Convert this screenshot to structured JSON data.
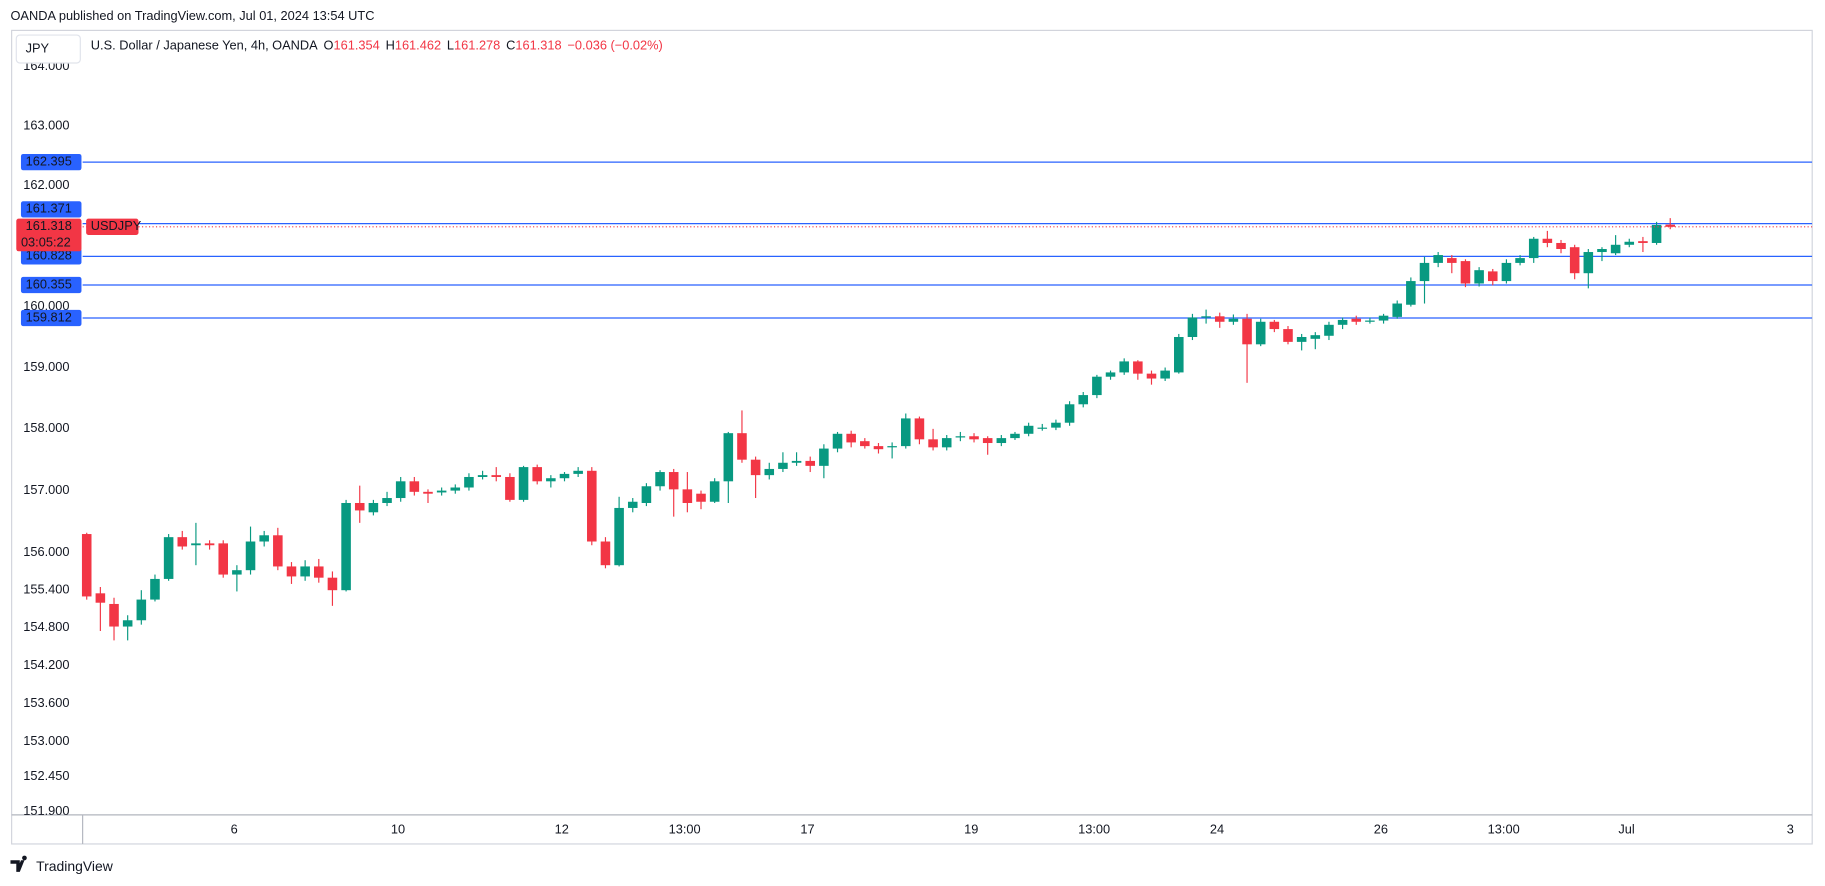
{
  "header": "OANDA published on TradingView.com, Jul 01, 2024 13:54 UTC",
  "chart_data": {
    "type": "candlestick",
    "symbol_button": "JPY",
    "legend": {
      "title": "U.S. Dollar / Japanese Yen, 4h, OANDA",
      "open_label": "O",
      "open": 161.354,
      "high_label": "H",
      "high": 161.462,
      "low_label": "L",
      "low": 161.278,
      "close_label": "C",
      "close": 161.318,
      "change": "−0.036 (−0.02%)"
    },
    "open": [
      156.3,
      155.35,
      155.18,
      154.82,
      154.92,
      155.25,
      155.58,
      156.25,
      156.12,
      156.15,
      156.15,
      155.65,
      155.72,
      156.18,
      156.28,
      155.78,
      155.62,
      155.78,
      155.6,
      155.4,
      156.8,
      156.65,
      156.8,
      156.88,
      157.15,
      156.98,
      156.97,
      157.0,
      157.05,
      157.22,
      157.25,
      157.22,
      156.85,
      157.38,
      157.15,
      157.2,
      157.27,
      157.32,
      156.18,
      155.8,
      156.72,
      156.8,
      157.07,
      157.3,
      157.02,
      156.95,
      156.82,
      157.15,
      157.93,
      157.5,
      157.25,
      157.35,
      157.45,
      157.48,
      157.4,
      157.68,
      157.92,
      157.8,
      157.72,
      157.7,
      157.72,
      158.17,
      157.83,
      157.7,
      157.86,
      157.88,
      157.85,
      157.77,
      157.85,
      157.92,
      158.02,
      158.02,
      158.1,
      158.4,
      158.55,
      158.85,
      158.92,
      159.1,
      158.9,
      158.82,
      158.92,
      159.5,
      159.82,
      159.84,
      159.75,
      159.8,
      159.38,
      159.75,
      159.63,
      159.42,
      159.47,
      159.52,
      159.7,
      159.8,
      159.75,
      159.77,
      159.83,
      160.03,
      160.42,
      160.72,
      160.8,
      160.75,
      160.38,
      160.58,
      160.42,
      160.72,
      160.8,
      161.12,
      161.05,
      160.98,
      160.55,
      160.9,
      160.88,
      161.02,
      161.08,
      161.05,
      161.354
    ],
    "high": [
      156.32,
      155.45,
      155.28,
      155.0,
      155.4,
      155.65,
      156.3,
      156.35,
      156.48,
      156.2,
      156.2,
      155.8,
      156.42,
      156.35,
      156.4,
      155.85,
      155.88,
      155.9,
      155.7,
      156.85,
      157.08,
      156.85,
      156.98,
      157.22,
      157.22,
      157.02,
      157.05,
      157.1,
      157.28,
      157.32,
      157.38,
      157.28,
      157.4,
      157.42,
      157.25,
      157.3,
      157.38,
      157.38,
      156.25,
      156.9,
      156.88,
      157.12,
      157.33,
      157.35,
      157.3,
      157.0,
      157.2,
      157.95,
      158.3,
      157.55,
      157.45,
      157.62,
      157.62,
      157.55,
      157.75,
      157.95,
      157.97,
      157.85,
      157.77,
      157.78,
      158.25,
      158.2,
      158.0,
      157.9,
      157.95,
      157.93,
      157.88,
      157.9,
      157.95,
      158.1,
      158.08,
      158.15,
      158.45,
      158.6,
      158.88,
      158.95,
      159.15,
      159.12,
      158.95,
      159.0,
      159.55,
      159.88,
      159.95,
      159.9,
      159.87,
      159.88,
      159.8,
      159.78,
      159.68,
      159.55,
      159.58,
      159.75,
      159.82,
      159.85,
      159.82,
      159.88,
      160.1,
      160.48,
      160.82,
      160.9,
      160.85,
      160.78,
      160.65,
      160.62,
      160.78,
      160.85,
      161.15,
      161.25,
      161.1,
      161.02,
      160.95,
      160.98,
      161.18,
      161.12,
      161.15,
      161.4,
      161.462
    ],
    "low": [
      155.25,
      154.75,
      154.6,
      154.6,
      154.85,
      155.22,
      155.55,
      156.05,
      155.8,
      156.05,
      155.6,
      155.38,
      155.65,
      156.1,
      155.72,
      155.5,
      155.55,
      155.52,
      155.15,
      155.38,
      156.48,
      156.6,
      156.75,
      156.82,
      156.92,
      156.8,
      156.92,
      156.95,
      157.0,
      157.18,
      157.15,
      156.82,
      156.82,
      157.1,
      157.05,
      157.15,
      157.22,
      156.12,
      155.75,
      155.78,
      156.65,
      156.75,
      157.0,
      156.58,
      156.65,
      156.7,
      156.8,
      156.8,
      157.45,
      156.88,
      157.18,
      157.3,
      157.4,
      157.3,
      157.2,
      157.62,
      157.7,
      157.68,
      157.6,
      157.52,
      157.68,
      157.75,
      157.65,
      157.65,
      157.8,
      157.78,
      157.58,
      157.72,
      157.82,
      157.88,
      157.97,
      157.98,
      158.05,
      158.35,
      158.5,
      158.8,
      158.88,
      158.8,
      158.72,
      158.78,
      158.9,
      159.45,
      159.72,
      159.65,
      159.7,
      158.75,
      159.35,
      159.58,
      159.38,
      159.28,
      159.3,
      159.45,
      159.63,
      159.7,
      159.72,
      159.72,
      159.8,
      160.0,
      160.05,
      160.65,
      160.55,
      160.32,
      160.33,
      160.35,
      160.38,
      160.68,
      160.72,
      160.98,
      160.88,
      160.45,
      160.3,
      160.75,
      160.85,
      160.98,
      160.9,
      161.02,
      161.278
    ],
    "close": [
      155.3,
      155.2,
      154.82,
      154.92,
      155.25,
      155.58,
      156.25,
      156.1,
      156.15,
      156.12,
      155.65,
      155.72,
      156.18,
      156.28,
      155.78,
      155.62,
      155.78,
      155.6,
      155.4,
      156.8,
      156.68,
      156.8,
      156.88,
      157.15,
      156.98,
      156.95,
      157.0,
      157.05,
      157.22,
      157.25,
      157.22,
      156.85,
      157.38,
      157.15,
      157.2,
      157.27,
      157.32,
      156.18,
      155.8,
      156.72,
      156.82,
      157.07,
      157.3,
      157.02,
      156.8,
      156.82,
      157.15,
      157.93,
      157.5,
      157.25,
      157.35,
      157.45,
      157.48,
      157.4,
      157.68,
      157.92,
      157.78,
      157.72,
      157.67,
      157.72,
      158.17,
      157.83,
      157.7,
      157.85,
      157.88,
      157.83,
      157.77,
      157.85,
      157.92,
      158.05,
      158.02,
      158.1,
      158.4,
      158.55,
      158.85,
      158.92,
      159.1,
      158.9,
      158.82,
      158.95,
      159.5,
      159.82,
      159.84,
      159.75,
      159.8,
      159.38,
      159.75,
      159.63,
      159.42,
      159.5,
      159.53,
      159.7,
      159.78,
      159.75,
      159.77,
      159.85,
      160.05,
      160.42,
      160.72,
      160.85,
      160.72,
      160.38,
      160.6,
      160.42,
      160.72,
      160.8,
      161.12,
      161.05,
      160.95,
      160.55,
      160.9,
      160.95,
      161.02,
      161.07,
      161.05,
      161.35,
      161.318
    ],
    "up_color": "#089981",
    "down_color": "#f23645",
    "log_scale": true,
    "ylim": [
      151.85,
      164.61
    ],
    "yticks": [
      {
        "value": 164,
        "label": "164.000"
      },
      {
        "value": 163,
        "label": "163.000"
      },
      {
        "value": 162,
        "label": "162.000"
      },
      {
        "value": 160,
        "label": "160.000"
      },
      {
        "value": 159,
        "label": "159.000"
      },
      {
        "value": 158,
        "label": "158.000"
      },
      {
        "value": 157,
        "label": "157.000"
      },
      {
        "value": 156,
        "label": "156.000"
      },
      {
        "value": 155.4,
        "label": "155.400"
      },
      {
        "value": 154.8,
        "label": "154.800"
      },
      {
        "value": 154.2,
        "label": "154.200"
      },
      {
        "value": 153.6,
        "label": "153.600"
      },
      {
        "value": 153,
        "label": "153.000"
      },
      {
        "value": 152.45,
        "label": "152.450"
      },
      {
        "value": 151.9,
        "label": "151.900"
      }
    ],
    "xlim": [
      -5.5,
      126.4
    ],
    "xticks": [
      {
        "value": 10.8,
        "label": "6"
      },
      {
        "value": 22.8,
        "label": "10"
      },
      {
        "value": 34.8,
        "label": "12"
      },
      {
        "value": 43.8,
        "label": "13:00"
      },
      {
        "value": 52.8,
        "label": "17"
      },
      {
        "value": 64.8,
        "label": "19"
      },
      {
        "value": 73.8,
        "label": "13:00"
      },
      {
        "value": 82.8,
        "label": "24"
      },
      {
        "value": 94.8,
        "label": "26"
      },
      {
        "value": 103.8,
        "label": "13:00"
      },
      {
        "value": 112.8,
        "label": "Jul"
      },
      {
        "value": 124.8,
        "label": "3"
      }
    ],
    "price_lines": {
      "color": "#2962ff",
      "values": [
        162.395,
        161.371,
        160.828,
        160.355,
        159.812
      ]
    },
    "last_price": {
      "name": "USDJPY",
      "value": 161.318,
      "countdown": "03:05:22",
      "color": "#f23645"
    }
  },
  "footer": "TradingView"
}
